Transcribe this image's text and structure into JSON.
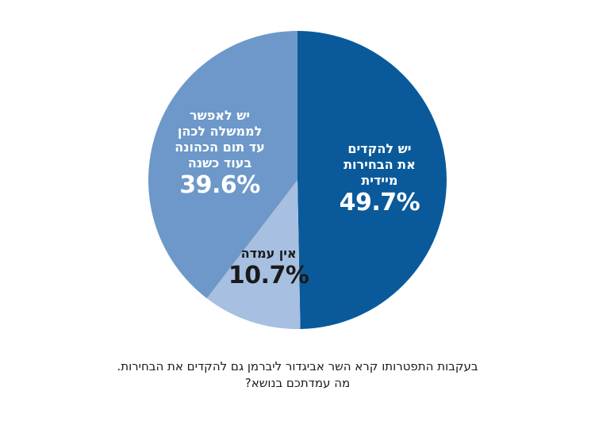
{
  "chart_data": {
    "type": "pie",
    "slices": [
      {
        "label_lines": [
          "יש להקדים",
          "את הבחירות",
          "מיידית"
        ],
        "value": 49.7,
        "value_label": "49.7%",
        "color": "#0a5a9b",
        "text_color": "#ffffff"
      },
      {
        "label_lines": [
          "אין עמדה"
        ],
        "value": 10.7,
        "value_label": "10.7%",
        "color": "#a7bfe0",
        "text_color": "#1a1a1a"
      },
      {
        "label_lines": [
          "יש לאפשר",
          "לממשלה לכהן",
          "עד תום הכהונה",
          "בעוד כשנה"
        ],
        "value": 39.6,
        "value_label": "39.6%",
        "color": "#6d98c9",
        "text_color": "#ffffff"
      }
    ]
  },
  "caption": {
    "lines": [
      "בעקבות התפטרותו קרא השר אביגדור ליברמן גם להקדים את הבחירות.",
      "מה עמדתכם בנושא?"
    ]
  }
}
